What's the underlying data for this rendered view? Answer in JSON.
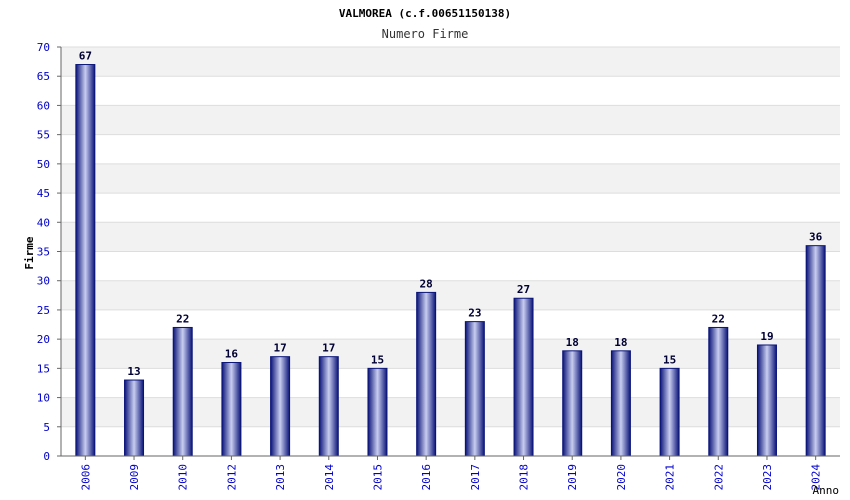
{
  "chart_data": {
    "type": "bar",
    "title": "VALMOREA (c.f.00651150138)",
    "subtitle": "Numero Firme",
    "xlabel": "Anno",
    "ylabel": "Firme",
    "ylim": [
      0,
      70
    ],
    "yticks": [
      0,
      5,
      10,
      15,
      20,
      25,
      30,
      35,
      40,
      45,
      50,
      55,
      60,
      65,
      70
    ],
    "grid": true,
    "categories": [
      "2006",
      "2009",
      "2010",
      "2012",
      "2013",
      "2014",
      "2015",
      "2016",
      "2017",
      "2018",
      "2019",
      "2020",
      "2021",
      "2022",
      "2023",
      "2024"
    ],
    "values": [
      67,
      13,
      22,
      16,
      17,
      17,
      15,
      28,
      23,
      27,
      18,
      18,
      15,
      22,
      19,
      36
    ]
  },
  "colors": {
    "bar_dark": "#0a1478",
    "bar_light": "#c8cdf0",
    "tick_label": "#0000cc",
    "value_label": "#000033",
    "band_alt": "#f2f2f2",
    "grid": "#dddddd",
    "axis": "#666666"
  }
}
